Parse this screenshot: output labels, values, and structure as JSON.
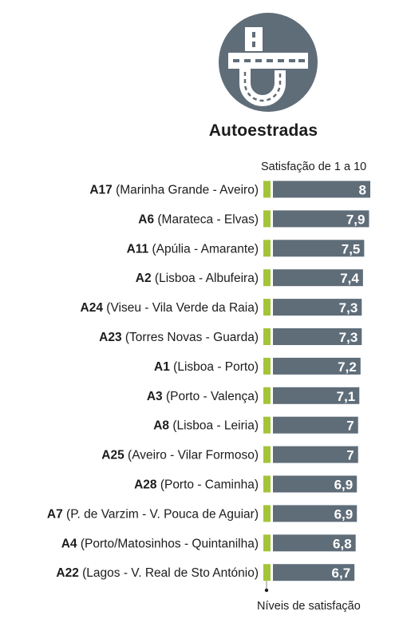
{
  "header": {
    "icon": "motorway-interchange-icon",
    "title": "Autoestradas",
    "subtitle": "Satisfação de 1 a 10"
  },
  "footer": {
    "label": "Níveis de satisfação"
  },
  "colors": {
    "bar": "#5f6d79",
    "accent": "#a4c437",
    "icon_bg": "#5f6d79",
    "text": "#1c1c1c"
  },
  "chart_data": {
    "type": "bar",
    "orientation": "horizontal",
    "subtitle": "Satisfação de 1 a 10",
    "xlim": [
      0,
      10
    ],
    "categories": [
      {
        "code": "A17",
        "route": "(Marinha Grande - Aveiro)"
      },
      {
        "code": "A6",
        "route": "(Marateca - Elvas)"
      },
      {
        "code": "A11",
        "route": "(Apúlia - Amarante)"
      },
      {
        "code": "A2",
        "route": "(Lisboa - Albufeira)"
      },
      {
        "code": "A24",
        "route": "(Viseu - Vila Verde da Raia)"
      },
      {
        "code": "A23",
        "route": "(Torres Novas - Guarda)"
      },
      {
        "code": "A1",
        "route": "(Lisboa - Porto)"
      },
      {
        "code": "A3",
        "route": "(Porto - Valença)"
      },
      {
        "code": "A8",
        "route": "(Lisboa - Leiria)"
      },
      {
        "code": "A25",
        "route": "(Aveiro - Vilar Formoso)"
      },
      {
        "code": "A28",
        "route": "(Porto - Caminha)"
      },
      {
        "code": "A7",
        "route": "(P. de Varzim - V. Pouca de Aguiar)"
      },
      {
        "code": "A4",
        "route": "(Porto/Matosinhos - Quintanilha)"
      },
      {
        "code": "A22",
        "route": "(Lagos - V. Real de Sto António)"
      }
    ],
    "values": [
      8,
      7.9,
      7.5,
      7.4,
      7.3,
      7.3,
      7.2,
      7.1,
      7,
      7,
      6.9,
      6.9,
      6.8,
      6.7
    ],
    "value_labels": [
      "8",
      "7,9",
      "7,5",
      "7,4",
      "7,3",
      "7,3",
      "7,2",
      "7,1",
      "7",
      "7",
      "6,9",
      "6,9",
      "6,8",
      "6,7"
    ]
  }
}
